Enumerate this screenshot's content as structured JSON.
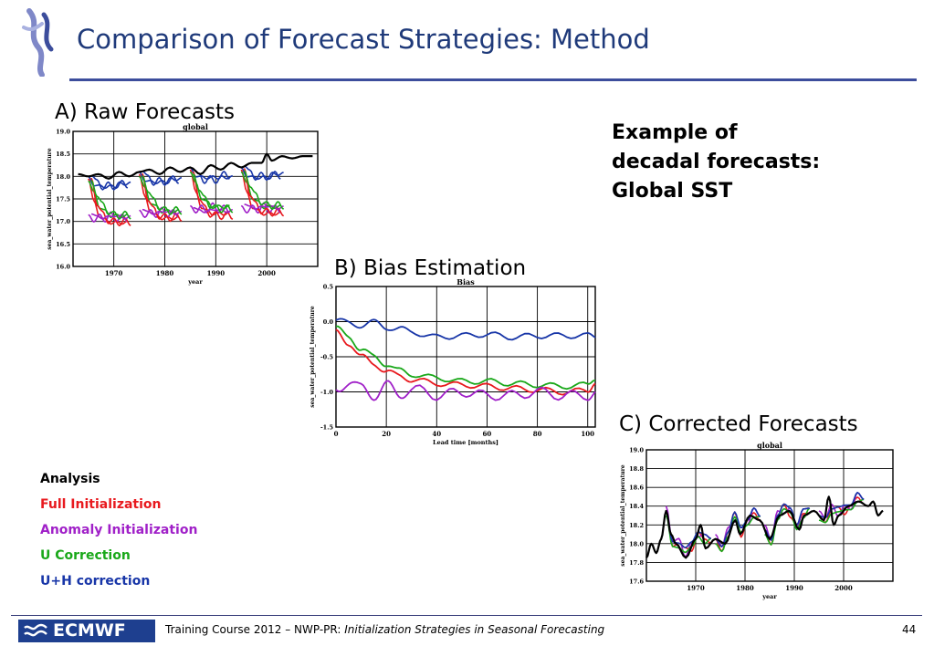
{
  "slide": {
    "title": "Comparison of Forecast Strategies: Method",
    "label_a": "A) Raw Forecasts",
    "label_b": "B) Bias Estimation",
    "label_c": "C) Corrected Forecasts",
    "example_lines": [
      "Example of",
      "decadal forecasts:",
      "Global SST"
    ]
  },
  "legend": {
    "items": [
      {
        "label": "Analysis",
        "color": "#000000"
      },
      {
        "label": "Full Initialization",
        "color": "#e8191e"
      },
      {
        "label": "Anomaly Initialization",
        "color": "#a020c8"
      },
      {
        "label": "U Correction",
        "color": "#1aa81a"
      },
      {
        "label": "U+H correction",
        "color": "#1836a8"
      }
    ]
  },
  "footer": {
    "logo_text": "ECMWF",
    "course": "Training Course 2012 – NWP-PR: ",
    "topic": "Initialization Strategies in Seasonal Forecasting",
    "page": "44"
  },
  "chart_data": [
    {
      "id": "raw",
      "type": "line",
      "title": "global",
      "xlabel": "year",
      "ylabel": "sea_water_potential_temperature",
      "xlim": [
        1962,
        2010
      ],
      "ylim": [
        16.0,
        19.0
      ],
      "xticks": [
        1970,
        1980,
        1990,
        2000
      ],
      "yticks": [
        16.0,
        16.5,
        17.0,
        17.5,
        18.0,
        18.5,
        19.0
      ],
      "ytick_labels": [
        "16.0",
        "16.5",
        "17.0",
        "17.5",
        "18.0",
        "18.5",
        "19.0"
      ],
      "grid": true,
      "analysis": {
        "x": [
          1963,
          1965,
          1967,
          1969,
          1971,
          1973,
          1975,
          1977,
          1979,
          1981,
          1983,
          1985,
          1987,
          1989,
          1991,
          1993,
          1995,
          1997,
          1999,
          2000,
          2001,
          2003,
          2005,
          2007,
          2009
        ],
        "y": [
          18.05,
          18.0,
          18.05,
          17.95,
          18.1,
          18.0,
          18.1,
          18.15,
          18.05,
          18.2,
          18.1,
          18.2,
          18.05,
          18.25,
          18.15,
          18.3,
          18.2,
          18.3,
          18.3,
          18.5,
          18.35,
          18.45,
          18.4,
          18.45,
          18.45
        ]
      },
      "forecast_starts": [
        1965,
        1975,
        1985,
        1995
      ],
      "ensemble": [
        {
          "name": "Full Initialization",
          "color": "#e8191e",
          "d": [
            -0.05,
            -0.6,
            -0.85,
            -1.0,
            -1.0,
            -1.05,
            -1.0,
            -1.05
          ]
        },
        {
          "name": "Anomaly Initialization",
          "color": "#a020c8",
          "d": [
            -0.85,
            -0.95,
            -0.9,
            -0.95,
            -0.85,
            -0.95,
            -0.9,
            -0.95
          ]
        },
        {
          "name": "U Correction",
          "color": "#1aa81a",
          "d": [
            -0.1,
            -0.4,
            -0.65,
            -0.8,
            -0.85,
            -0.9,
            -0.85,
            -0.9
          ]
        },
        {
          "name": "U+H correction",
          "color": "#1836a8",
          "d": [
            0.0,
            -0.15,
            -0.25,
            -0.2,
            -0.25,
            -0.2,
            -0.15,
            -0.2
          ]
        }
      ]
    },
    {
      "id": "bias",
      "type": "line",
      "title": "Bias",
      "xlabel": "Lead time [months]",
      "ylabel": "sea_water_potential_temperature",
      "xlim": [
        0,
        103
      ],
      "ylim": [
        -1.5,
        0.5
      ],
      "xticks": [
        0,
        20,
        40,
        60,
        80,
        100
      ],
      "yticks": [
        -1.5,
        -1.0,
        -0.5,
        0.0,
        0.5
      ],
      "ytick_labels": [
        "-1.5",
        "-1.0",
        "-0.5",
        "0.0",
        "0.5"
      ],
      "grid": true,
      "series": [
        {
          "name": "U+H correction",
          "color": "#1836a8",
          "x": [
            0,
            5,
            10,
            15,
            20,
            25,
            30,
            40,
            50,
            60,
            70,
            80,
            90,
            100,
            103
          ],
          "y": [
            0.02,
            -0.02,
            -0.05,
            -0.01,
            -0.08,
            -0.1,
            -0.15,
            -0.22,
            -0.2,
            -0.18,
            -0.22,
            -0.2,
            -0.2,
            -0.2,
            -0.22
          ]
        },
        {
          "name": "U Correction",
          "color": "#1aa81a",
          "x": [
            0,
            5,
            10,
            15,
            20,
            25,
            30,
            40,
            50,
            60,
            70,
            80,
            90,
            100,
            103
          ],
          "y": [
            -0.1,
            -0.2,
            -0.4,
            -0.5,
            -0.6,
            -0.7,
            -0.75,
            -0.8,
            -0.85,
            -0.85,
            -0.88,
            -0.9,
            -0.92,
            -0.9,
            -0.8
          ]
        },
        {
          "name": "Full Initialization",
          "color": "#e8191e",
          "x": [
            0,
            5,
            10,
            15,
            20,
            25,
            30,
            40,
            50,
            60,
            70,
            80,
            90,
            100,
            103
          ],
          "y": [
            -0.15,
            -0.3,
            -0.5,
            -0.6,
            -0.7,
            -0.78,
            -0.82,
            -0.88,
            -0.9,
            -0.92,
            -0.95,
            -0.97,
            -1.0,
            -0.98,
            -0.85
          ]
        },
        {
          "name": "Anomaly Initialization",
          "color": "#a020c8",
          "x": [
            0,
            5,
            10,
            15,
            20,
            25,
            30,
            40,
            50,
            60,
            70,
            80,
            90,
            100,
            103
          ],
          "y": [
            -0.98,
            -0.85,
            -0.95,
            -1.05,
            -0.9,
            -1.05,
            -0.95,
            -1.05,
            -1.0,
            -1.05,
            -1.05,
            -1.0,
            -1.05,
            -1.05,
            -1.0
          ]
        }
      ]
    },
    {
      "id": "corrected",
      "type": "line",
      "title": "global",
      "xlabel": "year",
      "ylabel": "sea_water_potential_temperature",
      "xlim": [
        1960,
        2010
      ],
      "ylim": [
        17.6,
        19.0
      ],
      "xticks": [
        1970,
        1980,
        1990,
        2000
      ],
      "yticks": [
        17.6,
        17.8,
        18.0,
        18.2,
        18.4,
        18.6,
        18.8,
        19.0
      ],
      "ytick_labels": [
        "17.6",
        "17.8",
        "18.0",
        "18.2",
        "18.4",
        "18.6",
        "18.8",
        "19.0"
      ],
      "grid": true,
      "analysis": {
        "x": [
          1960,
          1961,
          1962,
          1963,
          1964,
          1965,
          1966,
          1968,
          1970,
          1971,
          1972,
          1974,
          1976,
          1978,
          1979,
          1981,
          1983,
          1985,
          1987,
          1989,
          1991,
          1992,
          1994,
          1996,
          1997,
          1998,
          1999,
          2001,
          2003,
          2005,
          2006,
          2007,
          2008
        ],
        "y": [
          17.85,
          18.0,
          17.9,
          18.05,
          18.35,
          18.1,
          18.0,
          17.85,
          18.05,
          18.2,
          17.95,
          18.05,
          18.0,
          18.25,
          18.1,
          18.3,
          18.25,
          18.05,
          18.3,
          18.35,
          18.15,
          18.3,
          18.35,
          18.25,
          18.5,
          18.2,
          18.3,
          18.4,
          18.45,
          18.4,
          18.45,
          18.3,
          18.35
        ]
      },
      "forecast_starts": [
        1964,
        1974,
        1984,
        1995
      ],
      "series": [
        {
          "name": "Full Initialization",
          "color": "#e8191e",
          "d": [
            0.0,
            -0.1,
            0.05,
            0.1,
            -0.05,
            0.0,
            0.05,
            0.0
          ]
        },
        {
          "name": "Anomaly Initialization",
          "color": "#a020c8",
          "d": [
            0.05,
            -0.05,
            0.1,
            0.0,
            0.05,
            -0.05,
            0.1,
            0.05
          ]
        },
        {
          "name": "U Correction",
          "color": "#1aa81a",
          "d": [
            -0.05,
            -0.1,
            0.0,
            0.05,
            0.0,
            -0.05,
            0.0,
            0.05
          ]
        },
        {
          "name": "U+H correction",
          "color": "#1836a8",
          "d": [
            0.0,
            -0.05,
            0.05,
            0.1,
            0.05,
            0.0,
            0.1,
            0.05
          ]
        }
      ]
    }
  ]
}
